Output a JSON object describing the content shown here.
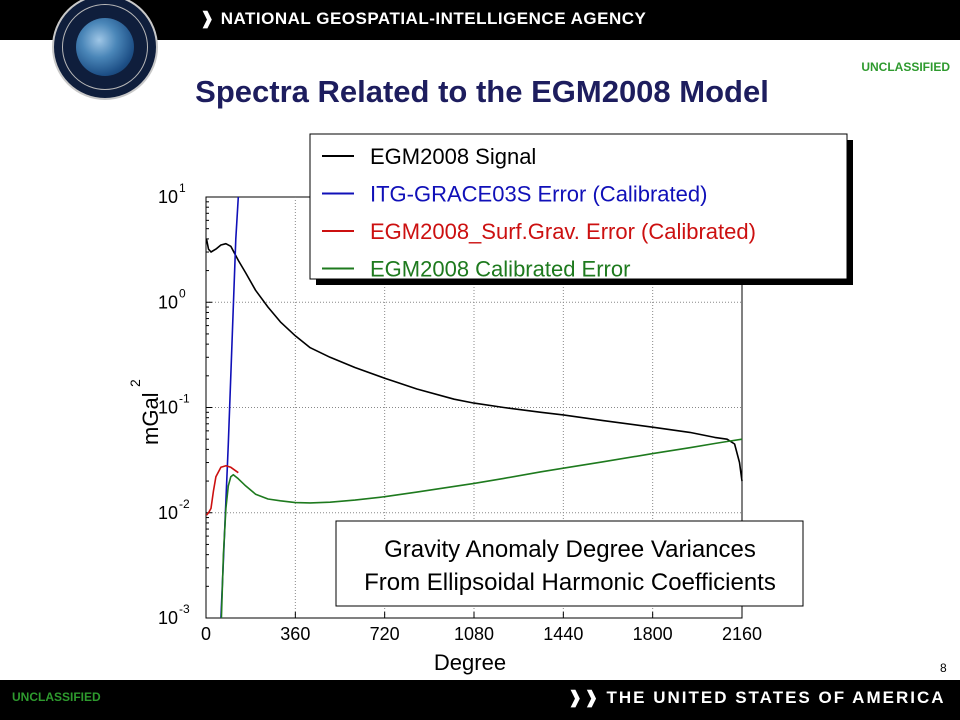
{
  "header": {
    "agency_label": "NATIONAL GEOSPATIAL-INTELLIGENCE AGENCY",
    "classification_top": "UNCLASSIFIED"
  },
  "footer": {
    "classification_bottom": "UNCLASSIFIED",
    "country_label": "THE UNITED STATES OF AMERICA",
    "page_number": "8"
  },
  "slide_title": "Spectra Related to the EGM2008 Model",
  "annotation": {
    "line1": "Gravity Anomaly Degree Variances",
    "line2": "From Ellipsoidal Harmonic Coefficients"
  },
  "chart_data": {
    "type": "line",
    "xlabel": "Degree",
    "ylabel_base": "mGal",
    "ylabel_exp": "2",
    "x_ticks": [
      0,
      360,
      720,
      1080,
      1440,
      1800,
      2160
    ],
    "xlim": [
      0,
      2160
    ],
    "ylim": [
      0.001,
      10
    ],
    "yscale": "log",
    "y_ticks": [
      {
        "value": 10,
        "base": "10",
        "exp": "1"
      },
      {
        "value": 1,
        "base": "10",
        "exp": "0"
      },
      {
        "value": 0.1,
        "base": "10",
        "exp": "-1"
      },
      {
        "value": 0.01,
        "base": "10",
        "exp": "-2"
      },
      {
        "value": 0.001,
        "base": "10",
        "exp": "-3"
      }
    ],
    "grid": true,
    "legend_position": "top-right",
    "series": [
      {
        "name": "EGM2008  Signal",
        "color": "#000000",
        "x": [
          2,
          10,
          20,
          40,
          60,
          80,
          100,
          130,
          160,
          200,
          250,
          300,
          360,
          420,
          500,
          600,
          720,
          850,
          1000,
          1080,
          1200,
          1350,
          1440,
          1600,
          1800,
          1950,
          2050,
          2100,
          2130,
          2150,
          2160
        ],
        "y": [
          4.0,
          3.2,
          3.0,
          3.2,
          3.5,
          3.6,
          3.4,
          2.5,
          1.9,
          1.3,
          0.9,
          0.65,
          0.48,
          0.37,
          0.3,
          0.24,
          0.19,
          0.15,
          0.12,
          0.11,
          0.1,
          0.09,
          0.085,
          0.075,
          0.065,
          0.058,
          0.052,
          0.05,
          0.045,
          0.03,
          0.02
        ]
      },
      {
        "name": "ITG-GRACE03S  Error (Calibrated)",
        "color": "#1010b8",
        "x": [
          60,
          70,
          80,
          90,
          100,
          110,
          120,
          130
        ],
        "y": [
          0.001,
          0.0035,
          0.013,
          0.045,
          0.2,
          0.9,
          4.0,
          10
        ]
      },
      {
        "name": "EGM2008_Surf.Grav.  Error (Calibrated)",
        "color": "#cc1010",
        "x": [
          2,
          10,
          20,
          30,
          40,
          60,
          80,
          100,
          130
        ],
        "y": [
          0.0095,
          0.01,
          0.011,
          0.016,
          0.022,
          0.027,
          0.028,
          0.027,
          0.024
        ]
      },
      {
        "name": "EGM2008  Calibrated Error",
        "color": "#1e7a1e",
        "x": [
          62,
          70,
          80,
          90,
          100,
          110,
          130,
          160,
          200,
          250,
          300,
          360,
          420,
          500,
          600,
          720,
          850,
          1000,
          1080,
          1200,
          1350,
          1440,
          1600,
          1800,
          1950,
          2050,
          2100,
          2160
        ],
        "y": [
          0.001,
          0.004,
          0.011,
          0.018,
          0.022,
          0.023,
          0.021,
          0.018,
          0.015,
          0.0135,
          0.013,
          0.0125,
          0.0124,
          0.0126,
          0.0132,
          0.0142,
          0.0157,
          0.0178,
          0.019,
          0.0212,
          0.0245,
          0.0265,
          0.0305,
          0.0365,
          0.0415,
          0.0455,
          0.0475,
          0.05
        ]
      }
    ]
  }
}
